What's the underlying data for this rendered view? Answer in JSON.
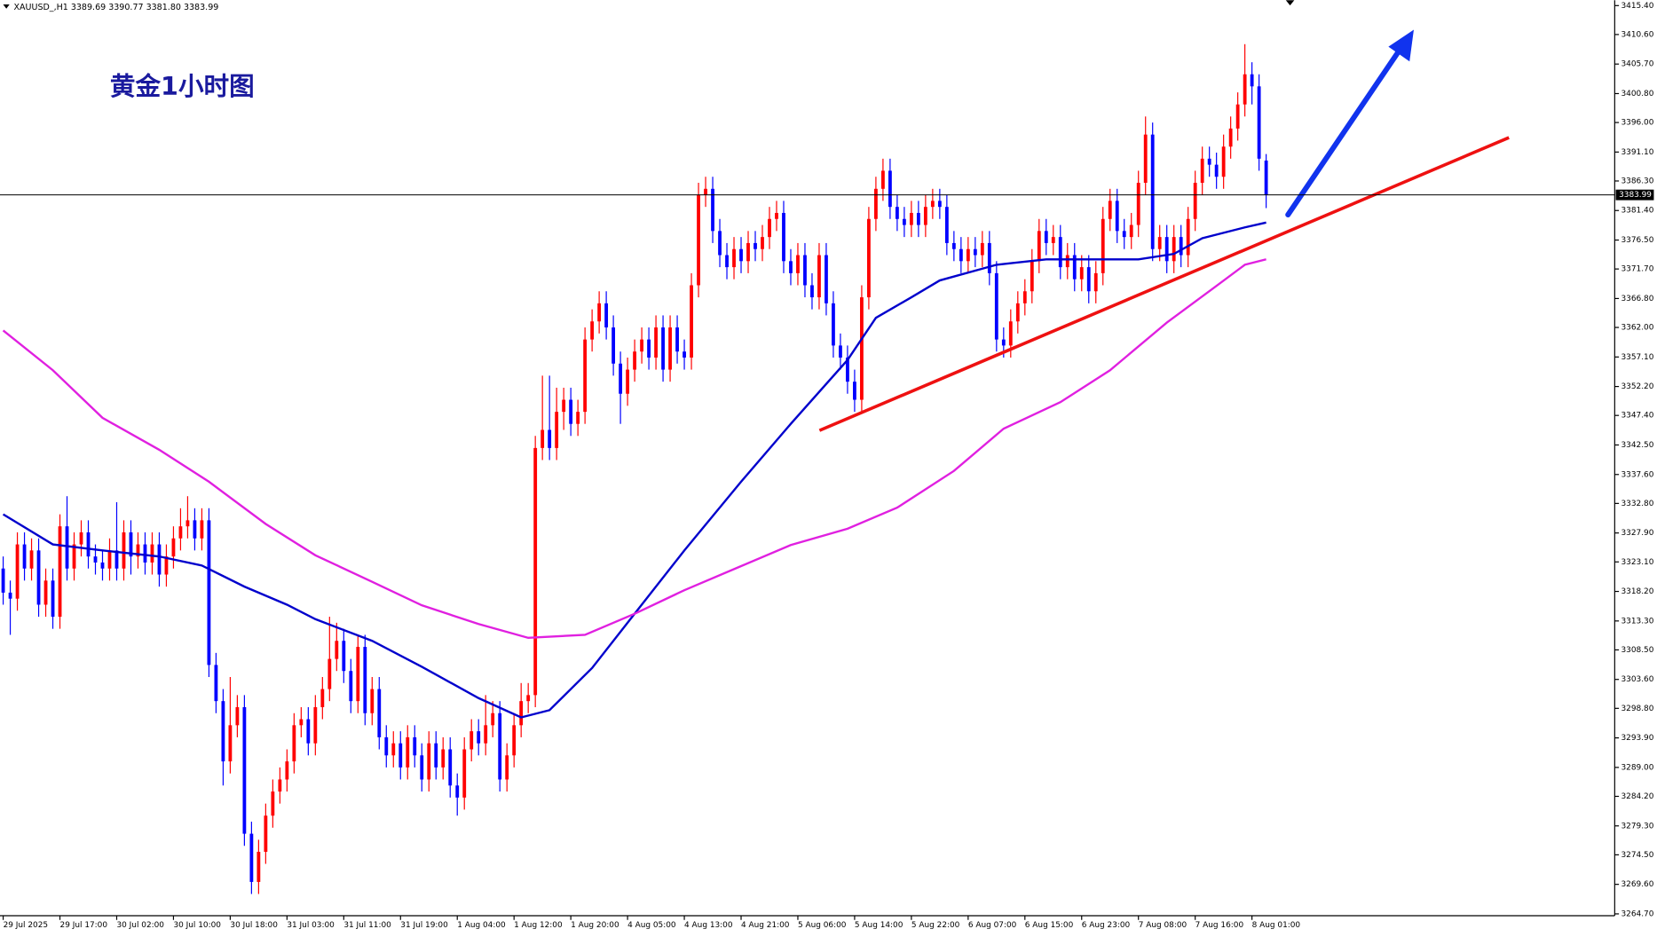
{
  "chart_data": {
    "type": "candlestick",
    "info": "XAUUSD_,H1  3389.69 3390.77 3381.80 3383.99",
    "annotation": "黄金1小时图",
    "up_color": "#ff0000",
    "down_color": "#0000ff",
    "categories": [
      "29 Jul 2025",
      null,
      null,
      null,
      null,
      null,
      null,
      null,
      "29 Jul 17:00",
      null,
      null,
      null,
      null,
      null,
      null,
      null,
      "30 Jul 02:00",
      null,
      null,
      null,
      null,
      null,
      null,
      null,
      "30 Jul 10:00",
      null,
      null,
      null,
      null,
      null,
      null,
      null,
      "30 Jul 18:00",
      null,
      null,
      null,
      null,
      null,
      null,
      null,
      "31 Jul 03:00",
      null,
      null,
      null,
      null,
      null,
      null,
      null,
      "31 Jul 11:00",
      null,
      null,
      null,
      null,
      null,
      null,
      null,
      "31 Jul 19:00",
      null,
      null,
      null,
      null,
      null,
      null,
      null,
      "1 Aug 04:00",
      null,
      null,
      null,
      null,
      null,
      null,
      null,
      "1 Aug 12:00",
      null,
      null,
      null,
      null,
      null,
      null,
      null,
      "1 Aug 20:00",
      null,
      null,
      null,
      null,
      null,
      null,
      null,
      "4 Aug 05:00",
      null,
      null,
      null,
      null,
      null,
      null,
      null,
      "4 Aug 13:00",
      null,
      null,
      null,
      null,
      null,
      null,
      null,
      "4 Aug 21:00",
      null,
      null,
      null,
      null,
      null,
      null,
      null,
      "5 Aug 06:00",
      null,
      null,
      null,
      null,
      null,
      null,
      null,
      "5 Aug 14:00",
      null,
      null,
      null,
      null,
      null,
      null,
      null,
      "5 Aug 22:00",
      null,
      null,
      null,
      null,
      null,
      null,
      null,
      "6 Aug 07:00",
      null,
      null,
      null,
      null,
      null,
      null,
      null,
      "6 Aug 15:00",
      null,
      null,
      null,
      null,
      null,
      null,
      null,
      "6 Aug 23:00",
      null,
      null,
      null,
      null,
      null,
      null,
      null,
      "7 Aug 08:00",
      null,
      null,
      null,
      null,
      null,
      null,
      null,
      "7 Aug 16:00",
      null,
      null,
      null,
      null,
      null,
      null,
      null,
      "8 Aug 01:00",
      null,
      null
    ],
    "open": [
      3322,
      3318,
      3317,
      3326,
      3322,
      3325,
      3316,
      3320,
      3314,
      3329,
      3322,
      3326,
      3328,
      3324,
      3323,
      3322,
      3325,
      3322,
      3328,
      3324,
      3326,
      3323,
      3326,
      3321,
      3324,
      3327,
      3329,
      3330,
      3327,
      3330,
      3306,
      3300,
      3290,
      3296,
      3299,
      3278,
      3270,
      3275,
      3281,
      3285,
      3287,
      3290,
      3296,
      3297,
      3293,
      3299,
      3302,
      3307,
      3310,
      3305,
      3300,
      3309,
      3298,
      3302,
      3294,
      3291,
      3293,
      3289,
      3294,
      3291,
      3287,
      3293,
      3289,
      3292,
      3286,
      3284,
      3292,
      3295,
      3293,
      3296,
      3298,
      3287,
      3291,
      3296,
      3300,
      3301,
      3342,
      3345,
      3342,
      3348,
      3350,
      3346,
      3348,
      3360,
      3363,
      3366,
      3362,
      3356,
      3351,
      3355,
      3358,
      3360,
      3357,
      3362,
      3355,
      3362,
      3358,
      3357,
      3369,
      3384,
      3385,
      3378,
      3374,
      3372,
      3375,
      3373,
      3376,
      3375,
      3377,
      3380,
      3381,
      3373,
      3371,
      3374,
      3369,
      3367,
      3374,
      3366,
      3359,
      3357,
      3353,
      3350,
      3367,
      3380,
      3385,
      3388,
      3382,
      3380,
      3379,
      3381,
      3379,
      3382,
      3383,
      3382,
      3376,
      3375,
      3373,
      3375,
      3374,
      3376,
      3371,
      3360,
      3359,
      3363,
      3366,
      3368,
      3373,
      3378,
      3376,
      3377,
      3372,
      3374,
      3370,
      3372,
      3368,
      3371,
      3380,
      3383,
      3378,
      3377,
      3379,
      3386,
      3394,
      3375,
      3377,
      3373,
      3377,
      3374,
      3380,
      3386,
      3390,
      3389,
      3387,
      3392,
      3395,
      3399,
      3404,
      3402,
      3389.69
    ],
    "high": [
      3324,
      3320,
      3328,
      3328,
      3327,
      3327,
      3322,
      3322,
      3331,
      3334,
      3328,
      3330,
      3330,
      3326,
      3325,
      3327,
      3333,
      3330,
      3330,
      3328,
      3328,
      3328,
      3328,
      3326,
      3329,
      3332,
      3334,
      3332,
      3332,
      3332,
      3308,
      3302,
      3304,
      3301,
      3301,
      3280,
      3277,
      3283,
      3287,
      3289,
      3292,
      3298,
      3299,
      3299,
      3301,
      3304,
      3314,
      3313,
      3312,
      3307,
      3311,
      3311,
      3304,
      3304,
      3296,
      3295,
      3295,
      3296,
      3296,
      3293,
      3295,
      3295,
      3294,
      3294,
      3288,
      3294,
      3297,
      3297,
      3301,
      3300,
      3300,
      3293,
      3298,
      3303,
      3303,
      3344,
      3354,
      3354,
      3352,
      3352,
      3352,
      3350,
      3362,
      3365,
      3368,
      3368,
      3364,
      3358,
      3357,
      3360,
      3362,
      3362,
      3364,
      3364,
      3364,
      3364,
      3360,
      3371,
      3386,
      3387,
      3387,
      3380,
      3376,
      3377,
      3377,
      3378,
      3378,
      3379,
      3382,
      3383,
      3383,
      3375,
      3376,
      3376,
      3371,
      3376,
      3376,
      3368,
      3361,
      3359,
      3355,
      3369,
      3382,
      3387,
      3390,
      3390,
      3384,
      3382,
      3383,
      3383,
      3384,
      3385,
      3385,
      3384,
      3378,
      3377,
      3377,
      3377,
      3378,
      3378,
      3373,
      3362,
      3365,
      3368,
      3370,
      3375,
      3380,
      3380,
      3379,
      3379,
      3376,
      3376,
      3374,
      3374,
      3373,
      3382,
      3385,
      3385,
      3380,
      3381,
      3388,
      3397,
      3396,
      3379,
      3379,
      3379,
      3379,
      3382,
      3388,
      3392,
      3392,
      3391,
      3394,
      3397,
      3401,
      3409,
      3406,
      3404,
      3390.77
    ],
    "low": [
      3316,
      3311,
      3315,
      3320,
      3320,
      3314,
      3314,
      3312,
      3312,
      3320,
      3320,
      3324,
      3322,
      3321,
      3320,
      3320,
      3320,
      3320,
      3321,
      3322,
      3321,
      3321,
      3319,
      3319,
      3322,
      3325,
      3327,
      3325,
      3325,
      3304,
      3298,
      3286,
      3288,
      3294,
      3276,
      3268,
      3268,
      3273,
      3279,
      3283,
      3285,
      3288,
      3294,
      3291,
      3291,
      3297,
      3300,
      3305,
      3303,
      3298,
      3298,
      3296,
      3296,
      3292,
      3289,
      3289,
      3287,
      3287,
      3289,
      3285,
      3285,
      3287,
      3287,
      3284,
      3281,
      3282,
      3290,
      3291,
      3291,
      3294,
      3285,
      3285,
      3289,
      3294,
      3298,
      3299,
      3340,
      3340,
      3340,
      3345,
      3344,
      3344,
      3346,
      3358,
      3361,
      3360,
      3354,
      3346,
      3349,
      3353,
      3356,
      3355,
      3355,
      3353,
      3353,
      3356,
      3355,
      3355,
      3367,
      3382,
      3376,
      3372,
      3370,
      3370,
      3371,
      3371,
      3373,
      3373,
      3375,
      3378,
      3371,
      3369,
      3369,
      3367,
      3365,
      3365,
      3364,
      3357,
      3355,
      3351,
      3348,
      3348,
      3365,
      3378,
      3383,
      3380,
      3378,
      3377,
      3377,
      3377,
      3377,
      3380,
      3380,
      3374,
      3373,
      3371,
      3371,
      3372,
      3372,
      3369,
      3358,
      3357,
      3357,
      3361,
      3364,
      3366,
      3371,
      3374,
      3374,
      3370,
      3370,
      3368,
      3368,
      3366,
      3366,
      3369,
      3378,
      3376,
      3375,
      3375,
      3377,
      3384,
      3373,
      3373,
      3371,
      3371,
      3372,
      3372,
      3378,
      3384,
      3387,
      3385,
      3385,
      3390,
      3393,
      3397,
      3399,
      3388,
      3381.8
    ],
    "close": [
      3318,
      3317,
      3326,
      3322,
      3325,
      3316,
      3320,
      3314,
      3329,
      3322,
      3326,
      3328,
      3324,
      3323,
      3322,
      3325,
      3322,
      3328,
      3324,
      3326,
      3323,
      3326,
      3321,
      3324,
      3327,
      3329,
      3330,
      3327,
      3330,
      3306,
      3300,
      3290,
      3296,
      3299,
      3278,
      3270,
      3275,
      3281,
      3285,
      3287,
      3290,
      3296,
      3297,
      3293,
      3299,
      3302,
      3307,
      3310,
      3305,
      3300,
      3309,
      3298,
      3302,
      3294,
      3291,
      3293,
      3289,
      3294,
      3291,
      3287,
      3293,
      3289,
      3292,
      3286,
      3284,
      3292,
      3295,
      3293,
      3296,
      3298,
      3287,
      3291,
      3296,
      3300,
      3301,
      3342,
      3345,
      3342,
      3348,
      3350,
      3346,
      3348,
      3360,
      3363,
      3366,
      3362,
      3356,
      3351,
      3355,
      3358,
      3360,
      3357,
      3362,
      3355,
      3362,
      3358,
      3357,
      3369,
      3384,
      3385,
      3378,
      3374,
      3372,
      3375,
      3373,
      3376,
      3375,
      3377,
      3380,
      3381,
      3373,
      3371,
      3374,
      3369,
      3367,
      3374,
      3366,
      3359,
      3357,
      3353,
      3350,
      3367,
      3380,
      3385,
      3388,
      3382,
      3380,
      3379,
      3381,
      3379,
      3382,
      3383,
      3382,
      3376,
      3375,
      3373,
      3375,
      3374,
      3376,
      3371,
      3360,
      3359,
      3363,
      3366,
      3368,
      3373,
      3378,
      3376,
      3377,
      3372,
      3374,
      3370,
      3372,
      3368,
      3371,
      3380,
      3383,
      3378,
      3377,
      3379,
      3386,
      3394,
      3375,
      3377,
      3373,
      3377,
      3374,
      3380,
      3386,
      3390,
      3389,
      3387,
      3392,
      3395,
      3399,
      3404,
      3402,
      3390,
      3383.99
    ],
    "ma_lines": [
      {
        "color": "#0000cc",
        "x": [
          0,
          7,
          14,
          22,
          28,
          34,
          40,
          44,
          52,
          59,
          67,
          73,
          77,
          83,
          89,
          96,
          104,
          111,
          119,
          123,
          128,
          132,
          140,
          147,
          155,
          160,
          165,
          169,
          175,
          178
        ],
        "values": [
          3331,
          3326,
          3325,
          3324,
          3322.5,
          3319,
          3316,
          3313.6,
          3310,
          3305.7,
          3300.5,
          3297.3,
          3298.5,
          3305.5,
          3314.5,
          3325,
          3336.4,
          3346,
          3356.6,
          3363.6,
          3367,
          3369.8,
          3372.4,
          3373.3,
          3373.3,
          3373.3,
          3374.2,
          3376.8,
          3378.6,
          3379.4
        ]
      },
      {
        "color": "#e020e0",
        "x": [
          0,
          7,
          14,
          22,
          29,
          37,
          44,
          52,
          59,
          67,
          74,
          82,
          89,
          96,
          104,
          111,
          119,
          126,
          134,
          141,
          149,
          156,
          164,
          171,
          175,
          178
        ],
        "values": [
          3361.5,
          3354.9,
          3347,
          3341.7,
          3336.4,
          3329.4,
          3324.2,
          3319.8,
          3315.9,
          3312.8,
          3310.5,
          3311,
          3314.5,
          3318.4,
          3322.4,
          3325.9,
          3328.6,
          3332.1,
          3338.2,
          3345.2,
          3349.6,
          3354.9,
          3362.8,
          3368.9,
          3372.4,
          3373.3
        ]
      }
    ],
    "current_price": 3383.99,
    "ylim": [
      3264.4,
      3416.3
    ],
    "yticks": [
      {
        "value": 3415.4,
        "label": "3415.40"
      },
      {
        "value": 3410.6,
        "label": "3410.60"
      },
      {
        "value": 3405.7,
        "label": "3405.70"
      },
      {
        "value": 3400.8,
        "label": "3400.80"
      },
      {
        "value": 3396,
        "label": "3396.00"
      },
      {
        "value": 3391.1,
        "label": "3391.10"
      },
      {
        "value": 3386.3,
        "label": "3386.30"
      },
      {
        "value": 3381.4,
        "label": "3381.40"
      },
      {
        "value": 3376.5,
        "label": "3376.50"
      },
      {
        "value": 3371.7,
        "label": "3371.70"
      },
      {
        "value": 3366.8,
        "label": "3366.80"
      },
      {
        "value": 3362,
        "label": "3362.00"
      },
      {
        "value": 3357.1,
        "label": "3357.10"
      },
      {
        "value": 3352.2,
        "label": "3352.20"
      },
      {
        "value": 3347.4,
        "label": "3347.40"
      },
      {
        "value": 3342.5,
        "label": "3342.50"
      },
      {
        "value": 3337.6,
        "label": "3337.60"
      },
      {
        "value": 3332.8,
        "label": "3332.80"
      },
      {
        "value": 3327.9,
        "label": "3327.90"
      },
      {
        "value": 3323.1,
        "label": "3323.10"
      },
      {
        "value": 3318.2,
        "label": "3318.20"
      },
      {
        "value": 3313.3,
        "label": "3313.30"
      },
      {
        "value": 3308.5,
        "label": "3308.50"
      },
      {
        "value": 3303.6,
        "label": "3303.60"
      },
      {
        "value": 3298.8,
        "label": "3298.80"
      },
      {
        "value": 3293.9,
        "label": "3293.90"
      },
      {
        "value": 3289,
        "label": "3289.00"
      },
      {
        "value": 3284.2,
        "label": "3284.20"
      },
      {
        "value": 3279.3,
        "label": "3279.30"
      },
      {
        "value": 3274.5,
        "label": "3274.50"
      },
      {
        "value": 3269.6,
        "label": "3269.60"
      },
      {
        "value": 3264.7,
        "label": "3264.70"
      }
    ]
  }
}
